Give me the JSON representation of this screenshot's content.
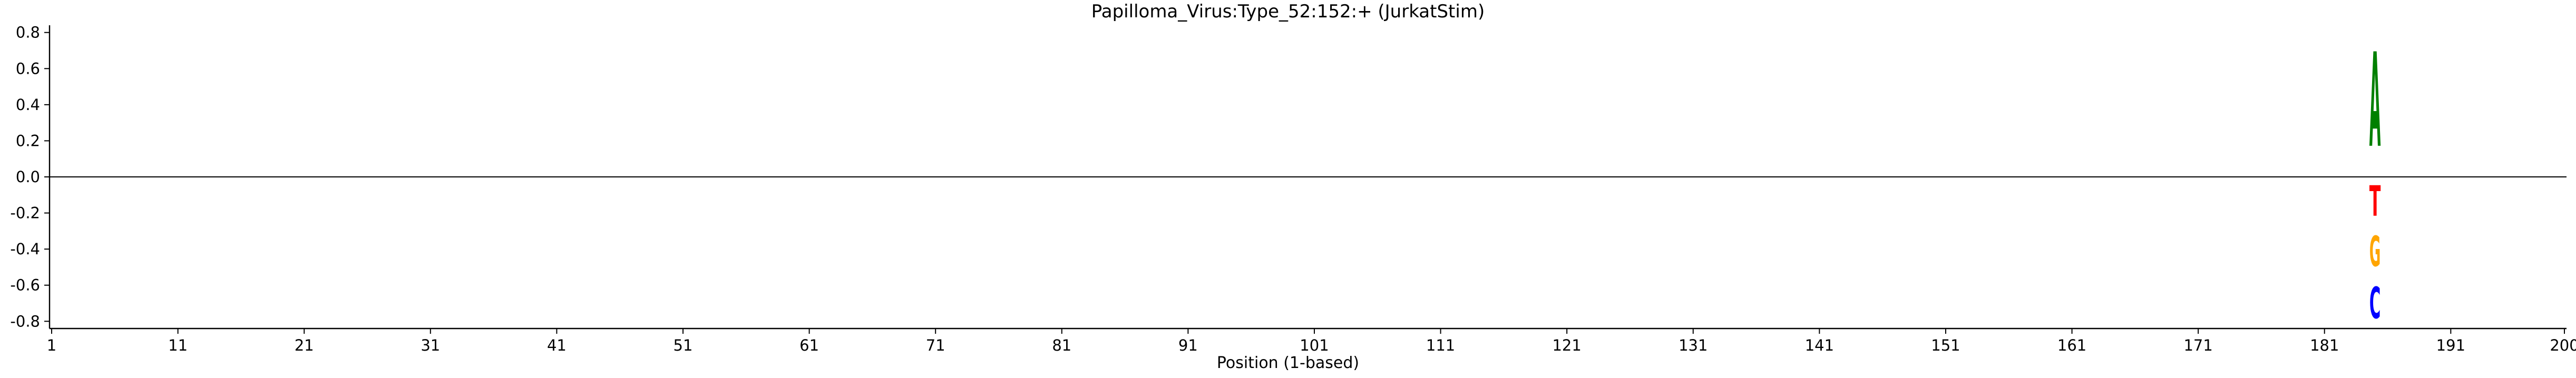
{
  "chart_data": {
    "type": "sequence-logo",
    "title": "Papilloma_Virus:Type_52:152:+  (JurkatStim)",
    "xlabel": "Position (1-based)",
    "ylabel": "",
    "xlim": [
      1,
      200
    ],
    "ylim": [
      -0.84,
      0.84
    ],
    "xticks": [
      1,
      11,
      21,
      31,
      41,
      51,
      61,
      71,
      81,
      91,
      101,
      111,
      121,
      131,
      141,
      151,
      161,
      171,
      181,
      191,
      200
    ],
    "yticks": [
      "-0.8",
      "-0.6",
      "-0.4",
      "-0.2",
      "0.0",
      "0.2",
      "0.4",
      "0.6",
      "0.8"
    ],
    "grid": false,
    "baseline": 0,
    "letters": [
      {
        "position": 185,
        "letter": "A",
        "bottom": 0,
        "top": 0.84,
        "color": "#008000"
      },
      {
        "position": 185,
        "letter": "T",
        "bottom": -0.27,
        "top": 0,
        "color": "#ff0000"
      },
      {
        "position": 185,
        "letter": "G",
        "bottom": -0.55,
        "top": -0.28,
        "color": "#ffa500"
      },
      {
        "position": 185,
        "letter": "C",
        "bottom": -0.84,
        "top": -0.56,
        "color": "#0000ff"
      }
    ]
  }
}
